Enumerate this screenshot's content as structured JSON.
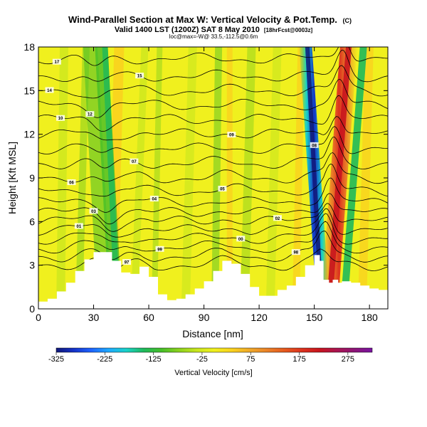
{
  "chart_data": {
    "type": "heatmap",
    "title": "Wind-Parallel Section at Max W: Vertical Velocity & Pot.Temp.",
    "copyright": "(C)",
    "subtitle": "Valid 1400 LST (1200Z) SAT 8 May 2010",
    "subtitle_note": "[18hrFcst@0003z]",
    "subtitle_small": "loc@max=-W@ 33.5,-112.5@0.6m",
    "xlabel": "Distance [nm]",
    "ylabel": "Height [Kft MSL]",
    "xlim": [
      0,
      190
    ],
    "ylim": [
      0,
      18
    ],
    "x_ticks": [
      0,
      30,
      60,
      90,
      120,
      150,
      180
    ],
    "y_ticks": [
      0,
      3,
      6,
      9,
      12,
      15,
      18
    ],
    "colorbar": {
      "label": "Vertical Velocity [cm/s]",
      "range": [
        -325,
        325
      ],
      "tick_values": [
        -325,
        -225,
        -125,
        -25,
        75,
        175,
        275
      ],
      "tick_labels": [
        "-325",
        "-225",
        "-125",
        "-25",
        "75",
        "175",
        "275"
      ],
      "colors": [
        "#101878",
        "#1432c8",
        "#1e64ff",
        "#1eaaff",
        "#19d2c8",
        "#1eb95a",
        "#46be28",
        "#8cd21e",
        "#c8e61e",
        "#f0f01e",
        "#fad21e",
        "#f0aa28",
        "#eb8228",
        "#e65a1e",
        "#dc321e",
        "#c8141e",
        "#aa1450",
        "#8c1478",
        "#7814a0"
      ]
    },
    "terrain_profile": {
      "x": [
        0,
        5,
        10,
        15,
        20,
        25,
        30,
        35,
        40,
        45,
        50,
        55,
        60,
        65,
        70,
        75,
        80,
        85,
        90,
        95,
        100,
        105,
        110,
        115,
        120,
        125,
        130,
        135,
        140,
        145,
        150,
        153,
        155,
        158,
        160,
        163,
        165,
        170,
        175,
        180,
        185,
        190
      ],
      "height": [
        0.5,
        0.7,
        1.2,
        1.8,
        2.6,
        3.4,
        3.9,
        3.9,
        3.3,
        2.5,
        2.4,
        2.9,
        2.2,
        1.0,
        0.6,
        0.7,
        1.0,
        1.4,
        1.9,
        2.6,
        3.3,
        3.1,
        2.4,
        1.5,
        0.9,
        0.9,
        1.3,
        1.6,
        2.2,
        3.0,
        3.7,
        3.3,
        2.0,
        1.8,
        2.0,
        1.8,
        1.9,
        1.8,
        1.6,
        1.4,
        1.3,
        1.3
      ]
    },
    "theta_isentropes": [
      {
        "label": "17",
        "base": 17.2,
        "label_x": 10
      },
      {
        "label": "15",
        "base": 16.0,
        "label_x": 55
      },
      {
        "label": "14",
        "base": 15.0,
        "label_x": 6
      },
      {
        "label": "12",
        "base": 14.0,
        "label_x": 28
      },
      {
        "label": "10",
        "base": 13.0,
        "label_x": 12
      },
      {
        "label": "09",
        "base": 12.0,
        "label_x": 105
      },
      {
        "label": "08",
        "base": 11.0,
        "label_x": 150
      },
      {
        "label": "07",
        "base": 10.0,
        "label_x": 52
      },
      {
        "label": "06",
        "base": 9.0,
        "label_x": 18
      },
      {
        "label": "05",
        "base": 8.1,
        "label_x": 100
      },
      {
        "label": "04",
        "base": 7.3,
        "label_x": 63
      },
      {
        "label": "03",
        "base": 6.6,
        "label_x": 30
      },
      {
        "label": "02",
        "base": 6.0,
        "label_x": 130
      },
      {
        "label": "01",
        "base": 5.4,
        "label_x": 22
      },
      {
        "label": "00",
        "base": 4.8,
        "label_x": 110
      },
      {
        "label": "99",
        "base": 4.2,
        "label_x": 66
      },
      {
        "label": "98",
        "base": 3.6,
        "label_x": 140
      },
      {
        "label": "97",
        "base": 3.0,
        "label_x": 48
      }
    ],
    "updraft_core": {
      "x_bottom": 158,
      "x_top": 169,
      "peak_cm_s": 250
    },
    "downdraft_core": {
      "x_bottom": 155,
      "x_top": 145,
      "min_cm_s": -300
    }
  }
}
